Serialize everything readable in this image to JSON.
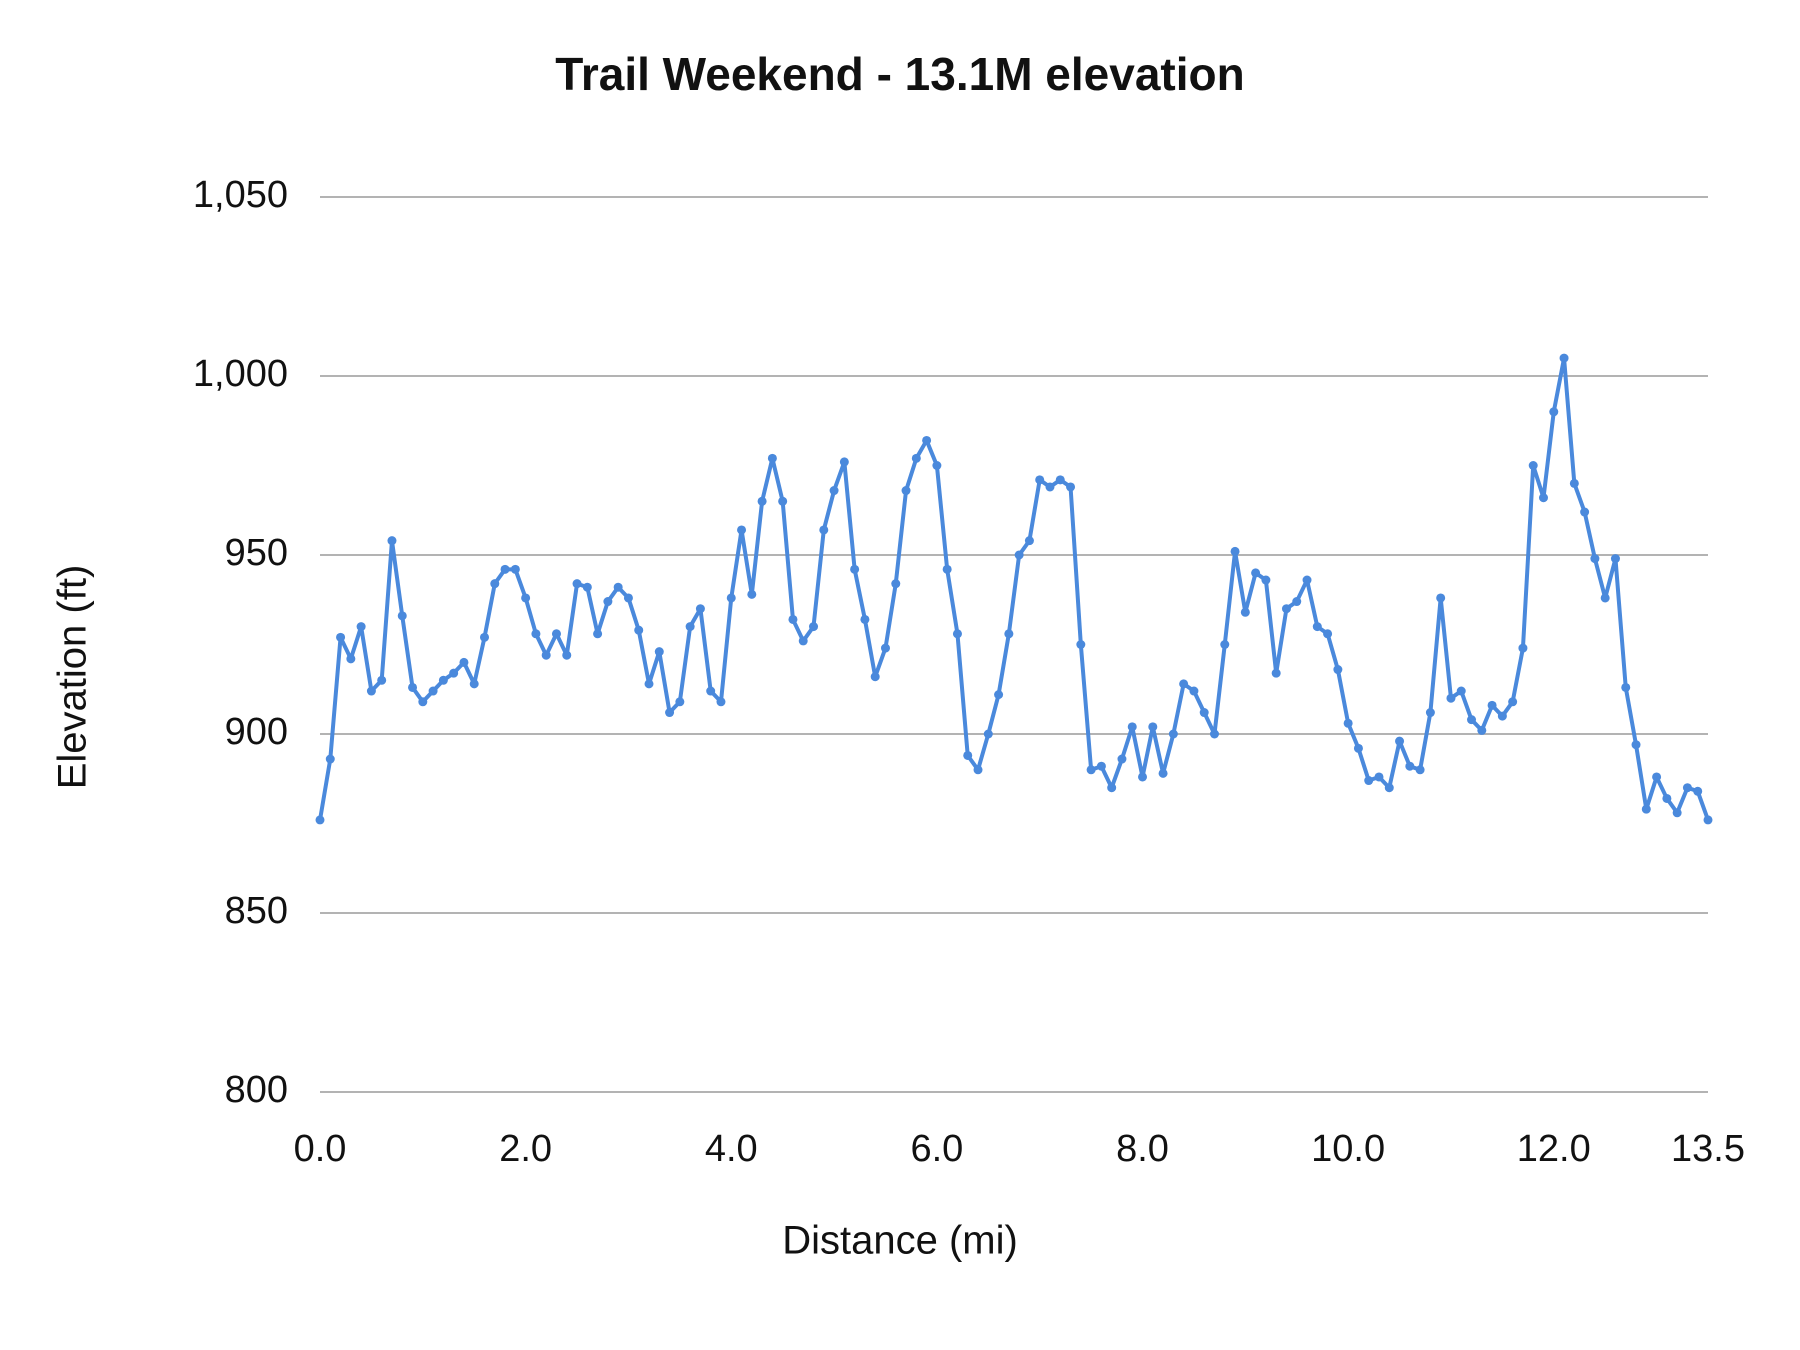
{
  "chart_data": {
    "type": "line",
    "title": "Trail Weekend - 13.1M elevation",
    "x_label": "Distance (mi)",
    "y_label": "Elevation (ft)",
    "x": [
      0.0,
      0.1,
      0.2,
      0.3,
      0.4,
      0.5,
      0.6,
      0.7,
      0.8,
      0.9,
      1.0,
      1.1,
      1.2,
      1.3,
      1.4,
      1.5,
      1.6,
      1.7,
      1.8,
      1.9,
      2.0,
      2.1,
      2.2,
      2.3,
      2.4,
      2.5,
      2.6,
      2.7,
      2.8,
      2.9,
      3.0,
      3.1,
      3.2,
      3.3,
      3.4,
      3.5,
      3.6,
      3.7,
      3.8,
      3.9,
      4.0,
      4.1,
      4.2,
      4.3,
      4.4,
      4.5,
      4.6,
      4.7,
      4.8,
      4.9,
      5.0,
      5.1,
      5.2,
      5.3,
      5.4,
      5.5,
      5.6,
      5.7,
      5.8,
      5.9,
      6.0,
      6.1,
      6.2,
      6.3,
      6.4,
      6.5,
      6.6,
      6.7,
      6.8,
      6.9,
      7.0,
      7.1,
      7.2,
      7.3,
      7.4,
      7.5,
      7.6,
      7.7,
      7.8,
      7.9,
      8.0,
      8.1,
      8.2,
      8.3,
      8.4,
      8.5,
      8.6,
      8.7,
      8.8,
      8.9,
      9.0,
      9.1,
      9.2,
      9.3,
      9.4,
      9.5,
      9.6,
      9.7,
      9.8,
      9.9,
      10.0,
      10.1,
      10.2,
      10.3,
      10.4,
      10.5,
      10.6,
      10.7,
      10.8,
      10.9,
      11.0,
      11.1,
      11.2,
      11.3,
      11.4,
      11.5,
      11.6,
      11.7,
      11.8,
      11.9,
      12.0,
      12.1,
      12.2,
      12.3,
      12.4,
      12.5,
      12.6,
      12.7,
      12.8,
      12.9,
      13.0,
      13.1,
      13.2,
      13.3,
      13.4,
      13.5
    ],
    "series": [
      {
        "name": "Elevation",
        "color": "#4a89dc",
        "values": [
          876,
          893,
          927,
          921,
          930,
          912,
          915,
          954,
          933,
          913,
          909,
          912,
          915,
          917,
          920,
          914,
          927,
          942,
          946,
          946,
          938,
          928,
          922,
          928,
          922,
          942,
          941,
          928,
          937,
          941,
          938,
          929,
          914,
          923,
          906,
          909,
          930,
          935,
          912,
          909,
          938,
          957,
          939,
          965,
          977,
          965,
          932,
          926,
          930,
          957,
          968,
          976,
          946,
          932,
          916,
          924,
          942,
          968,
          977,
          982,
          975,
          946,
          928,
          894,
          890,
          900,
          911,
          928,
          950,
          954,
          971,
          969,
          971,
          969,
          925,
          890,
          891,
          885,
          893,
          902,
          888,
          902,
          889,
          900,
          914,
          912,
          906,
          900,
          925,
          951,
          934,
          945,
          943,
          917,
          935,
          937,
          943,
          930,
          928,
          918,
          903,
          896,
          887,
          888,
          885,
          898,
          891,
          890,
          906,
          938,
          910,
          912,
          904,
          901,
          908,
          905,
          909,
          924,
          975,
          966,
          990,
          1005,
          970,
          962,
          949,
          938,
          949,
          913,
          897,
          879,
          888,
          882,
          878,
          885,
          884,
          876
        ]
      }
    ],
    "xlim": [
      0,
      13.5
    ],
    "xticks": [
      {
        "value": 0,
        "label": "0.0"
      },
      {
        "value": 2,
        "label": "2.0"
      },
      {
        "value": 4,
        "label": "4.0"
      },
      {
        "value": 6,
        "label": "6.0"
      },
      {
        "value": 8,
        "label": "8.0"
      },
      {
        "value": 10,
        "label": "10.0"
      },
      {
        "value": 12,
        "label": "12.0"
      },
      13.5
    ],
    "ylim": [
      800,
      1050
    ],
    "yticks": [
      800,
      850,
      900,
      950,
      {
        "value": 1000,
        "label": "1,000"
      },
      {
        "value": 1050,
        "label": "1,050"
      }
    ],
    "grid": true,
    "markers": true
  }
}
